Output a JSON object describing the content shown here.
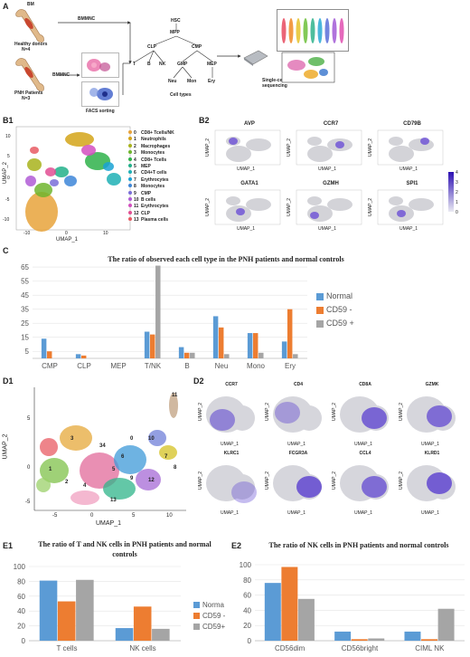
{
  "panel_labels": {
    "A": "A",
    "B1": "B1",
    "B2": "B2",
    "C": "C",
    "D1": "D1",
    "D2": "D2",
    "E1": "E1",
    "E2": "E2"
  },
  "panelA": {
    "bm_label": "BM",
    "healthy_donors": "Healthy donors",
    "healthy_n": "N=4",
    "bmmnc_top": "BMMNC",
    "pnh_patients": "PNH Patients",
    "pnh_n": "N=3",
    "bmmnc_bottom": "BMMNC",
    "facs": "FACS sorting",
    "tree": {
      "HSC": "HSC",
      "MPP": "MPP",
      "CLP": "CLP",
      "CMP": "CMP",
      "T": "T",
      "B": "B",
      "NK": "NK",
      "GMP": "GMP",
      "MEP": "MEP",
      "Neu": "Neu",
      "Mon": "Mon",
      "Ery": "Ery"
    },
    "cell_types": "Cell types",
    "single_cell": "Single-cell",
    "sequencing": "sequencing"
  },
  "panelB1": {
    "xlabel": "UMAP_1",
    "ylabel": "UMAP_2",
    "xticks": [
      "-10",
      "0",
      "10"
    ],
    "yticks": [
      "10",
      "5",
      "0",
      "-5",
      "-10"
    ],
    "legend": [
      {
        "id": "0",
        "name": "CD8+ Tcells/NK",
        "color": "#e8a33b"
      },
      {
        "id": "1",
        "name": "Neutrophils",
        "color": "#d4a419"
      },
      {
        "id": "2",
        "name": "Macrophages",
        "color": "#a8b31c"
      },
      {
        "id": "3",
        "name": "Monocytes",
        "color": "#6fb52e"
      },
      {
        "id": "4",
        "name": "CD8+ Tcells",
        "color": "#2fb24a"
      },
      {
        "id": "5",
        "name": "MEP",
        "color": "#22b08a"
      },
      {
        "id": "6",
        "name": "CD4+T cells",
        "color": "#1fb0b5"
      },
      {
        "id": "7",
        "name": "Erythrocytes",
        "color": "#1aa2d4"
      },
      {
        "id": "8",
        "name": "Monocytes",
        "color": "#3d86d8"
      },
      {
        "id": "9",
        "name": "CMP",
        "color": "#7a6ed8"
      },
      {
        "id": "10",
        "name": "B cells",
        "color": "#b05cd6"
      },
      {
        "id": "11",
        "name": "Erythrocytes",
        "color": "#d34fbf"
      },
      {
        "id": "12",
        "name": "CLP",
        "color": "#e24e93"
      },
      {
        "id": "13",
        "name": "Plasma cells",
        "color": "#e85b63"
      }
    ]
  },
  "panelB2": {
    "genes": [
      "AVP",
      "CCR7",
      "CD79B",
      "GATA1",
      "GZMH",
      "SPI1"
    ],
    "xlabel": "UMAP_1",
    "ylabel": "UMAP_2",
    "scale": [
      "4",
      "3",
      "2",
      "1",
      "0"
    ]
  },
  "chartC": {
    "chart_data": {
      "type": "bar",
      "title": "The ratio of observed each cell type in the PNH patients and normal controls",
      "categories": [
        "CMP",
        "CLP",
        "MEP",
        "T/NK",
        "B",
        "Neu",
        "Mono",
        "Ery"
      ],
      "yticks": [
        "65",
        "55",
        "45",
        "35",
        "25",
        "15",
        "5"
      ],
      "ylim": [
        0,
        67
      ],
      "series": [
        {
          "name": "Normal",
          "color": "#5b9bd5",
          "values": [
            14,
            3,
            0,
            19,
            8,
            30,
            18,
            12
          ]
        },
        {
          "name": "CD59 -",
          "color": "#ed7d31",
          "values": [
            5,
            2,
            0,
            17,
            4,
            22,
            18,
            35
          ]
        },
        {
          "name": "CD59 +",
          "color": "#a5a5a5",
          "values": [
            0,
            0,
            0,
            66,
            4,
            3,
            4,
            3
          ]
        }
      ]
    }
  },
  "panelD1": {
    "xlabel": "UMAP_1",
    "ylabel": "UMAP_2",
    "xticks": [
      "-5",
      "0",
      "5",
      "10"
    ],
    "yticks": [
      "5",
      "0",
      "-5"
    ],
    "cluster_labels": [
      "11",
      "34",
      "3",
      "0",
      "10",
      "1",
      "2",
      "4",
      "5",
      "6",
      "7",
      "8",
      "9",
      "12",
      "13"
    ]
  },
  "panelD2": {
    "genes": [
      "CCR7",
      "CD4",
      "CD8A",
      "GZMK",
      "KLRC1",
      "FCGR3A",
      "CCL4",
      "KLRD1"
    ],
    "xlabel": "UMAP_1",
    "ylabel": "UMAP_2"
  },
  "chartE1": {
    "chart_data": {
      "type": "bar",
      "title": "The ratio of T and NK cells in PNH patients and normal controls",
      "categories": [
        "T cells",
        "NK cells"
      ],
      "yticks": [
        "100",
        "80",
        "60",
        "40",
        "20",
        "0"
      ],
      "ylim": [
        0,
        100
      ],
      "series": [
        {
          "name": "Norma",
          "color": "#5b9bd5",
          "values": [
            81,
            17
          ]
        },
        {
          "name": "CD59 -",
          "color": "#ed7d31",
          "values": [
            53,
            46
          ]
        },
        {
          "name": "CD59+",
          "color": "#a5a5a5",
          "values": [
            82,
            16
          ]
        }
      ]
    }
  },
  "chartE2": {
    "chart_data": {
      "type": "bar",
      "title": "The ratio of NK cells in PNH patients and normal controls",
      "categories": [
        "CD56dim",
        "CD56bright",
        "CIML NK"
      ],
      "yticks": [
        "100",
        "80",
        "60",
        "40",
        "20",
        "0"
      ],
      "ylim": [
        0,
        100
      ],
      "series": [
        {
          "name": "Normal",
          "color": "#5b9bd5",
          "values": [
            76,
            12,
            12
          ]
        },
        {
          "name": "CD59 -",
          "color": "#ed7d31",
          "values": [
            97,
            2,
            2
          ]
        },
        {
          "name": "CD59 +",
          "color": "#a5a5a5",
          "values": [
            55,
            3,
            42
          ]
        }
      ]
    }
  }
}
